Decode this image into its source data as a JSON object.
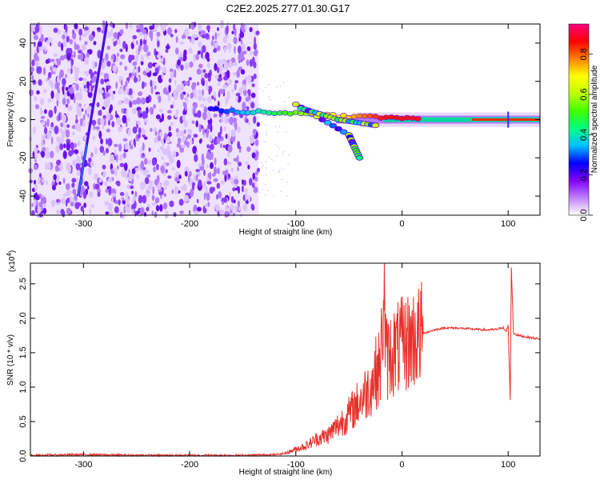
{
  "title": "C2E2.2025.277.01.30.G17",
  "chart_data": [
    {
      "type": "heatmap",
      "panel": "spectrogram",
      "xlabel": "Height of straight line (km)",
      "ylabel": "Frequency (Hz)",
      "xlim": [
        -350,
        130
      ],
      "ylim": [
        -50,
        50
      ],
      "xticks": [
        -300,
        -200,
        -100,
        0,
        100
      ],
      "yticks": [
        -40,
        -20,
        0,
        20,
        40
      ],
      "colorbar": {
        "label": "Normalized spectral amplitude",
        "range": [
          0.0,
          0.95
        ],
        "ticks": [
          0.0,
          0.2,
          0.4,
          0.6,
          0.8
        ],
        "colormap": [
          "#ffffff",
          "#c080ff",
          "#8000ff",
          "#0000ff",
          "#00c0ff",
          "#00ff80",
          "#40ff00",
          "#c0ff00",
          "#ffff00",
          "#ff8000",
          "#ff0000",
          "#ff0080"
        ]
      },
      "features": {
        "noise_region_x": [
          -350,
          -135
        ],
        "streak_line": {
          "x": [
            -305,
            -278
          ],
          "y": [
            -40,
            50
          ]
        },
        "main_tone_y": 0,
        "main_tone_x": [
          -130,
          130
        ],
        "branch_curves": [
          {
            "x": [
              -100,
              -50,
              -40
            ],
            "y": [
              8,
              -8,
              -20
            ]
          },
          {
            "x": [
              -95,
              -60,
              -25
            ],
            "y": [
              6,
              0,
              -3
            ]
          }
        ]
      },
      "grid": false,
      "legend": "colorbar right"
    },
    {
      "type": "line",
      "panel": "snr",
      "xlabel": "Height of straight line (km)",
      "ylabel": "SNR (10 * v/v)",
      "multiplier_label": "(x10",
      "multiplier_exp": "4",
      "multiplier_close": ")",
      "xlim": [
        -350,
        130
      ],
      "ylim": [
        0,
        2.8
      ],
      "xticks": [
        -300,
        -200,
        -100,
        0,
        100
      ],
      "yticks": [
        0.0,
        0.5,
        1.0,
        1.5,
        2.0,
        2.5
      ],
      "ytick_labels": [
        "0.0",
        "0.5",
        "1.0",
        "1.5",
        "2.0",
        "2.5"
      ],
      "series": [
        {
          "color": "#e8302a",
          "x": [
            -350,
            -300,
            -250,
            -200,
            -150,
            -120,
            -110,
            -100,
            -90,
            -80,
            -70,
            -60,
            -50,
            -40,
            -30,
            -25,
            -20,
            -17,
            -15,
            -10,
            -5,
            0,
            10,
            20,
            30,
            40,
            50,
            60,
            70,
            80,
            90,
            95,
            98,
            100,
            102,
            103,
            105,
            110,
            120,
            130
          ],
          "y": [
            0.01,
            0.02,
            0.01,
            0.01,
            0.01,
            0.02,
            0.04,
            0.1,
            0.15,
            0.25,
            0.3,
            0.45,
            0.6,
            0.8,
            1.0,
            1.2,
            1.3,
            2.45,
            1.4,
            1.5,
            1.55,
            1.6,
            1.7,
            1.78,
            1.83,
            1.86,
            1.86,
            1.85,
            1.84,
            1.83,
            1.84,
            1.87,
            1.8,
            1.9,
            0.8,
            2.75,
            1.78,
            1.75,
            1.72,
            1.7
          ]
        }
      ],
      "grid": false
    }
  ]
}
